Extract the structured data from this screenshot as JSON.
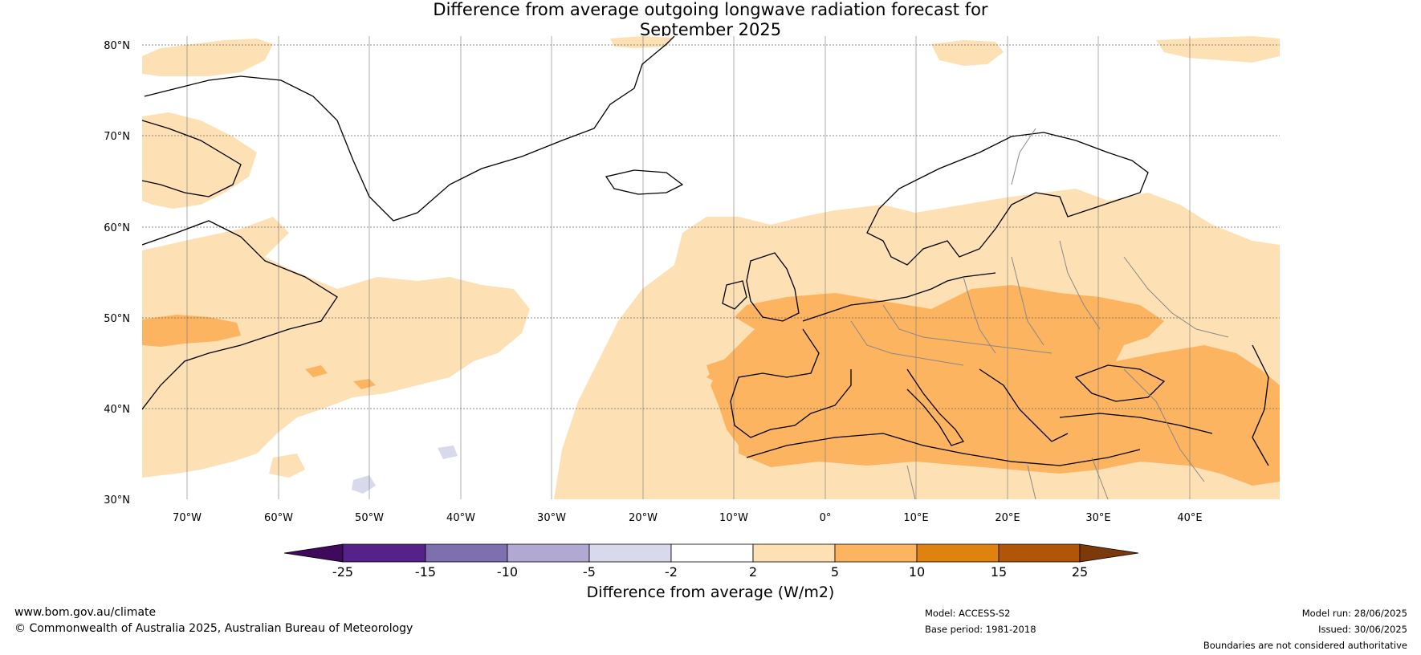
{
  "title": {
    "line1": "Difference from average outgoing longwave radiation forecast for",
    "line2": "September 2025"
  },
  "map": {
    "lat_labels": [
      "80°N",
      "70°N",
      "60°N",
      "50°N",
      "40°N",
      "30°N"
    ],
    "lon_labels": [
      "70°W",
      "60°W",
      "50°W",
      "40°W",
      "30°W",
      "20°W",
      "10°W",
      "0°",
      "10°E",
      "20°E",
      "30°E",
      "40°E"
    ],
    "lon_range": [
      -75,
      50
    ],
    "lat_range": [
      30,
      81
    ]
  },
  "colorbar": {
    "label": "Difference from average (W/m2)",
    "ticks": [
      "-25",
      "-15",
      "-10",
      "-5",
      "-2",
      "2",
      "5",
      "10",
      "15",
      "25"
    ],
    "colors": [
      "#3f0a5c",
      "#54228a",
      "#7e70ae",
      "#b2a9d3",
      "#d9d9ec",
      "#ffffff",
      "#fde0b4",
      "#fcb461",
      "#e0820f",
      "#b15508",
      "#7c3a0b"
    ]
  },
  "footer": {
    "site": "www.bom.gov.au/climate",
    "copyright": "© Commonwealth of Australia 2025, Australian Bureau of Meteorology",
    "model": "Model: ACCESS-S2",
    "base_period": "Base period: 1981-2018",
    "model_run": "Model run: 28/06/2025",
    "issued": "Issued: 30/06/2025",
    "disclaimer": "Boundaries are not considered authoritative"
  }
}
